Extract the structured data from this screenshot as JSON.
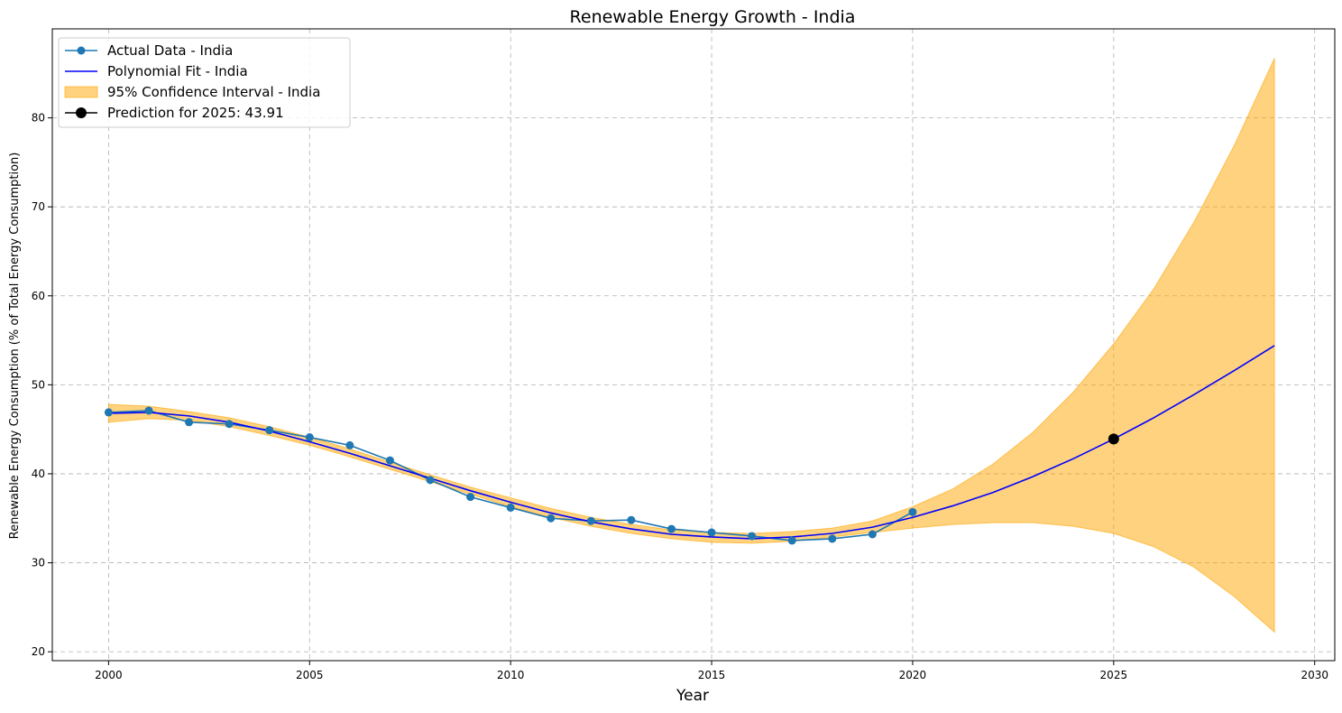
{
  "chart_data": {
    "type": "line",
    "title": "Renewable Energy Growth - India",
    "xlabel": "Year",
    "ylabel": "Renewable Energy Consumption (% of Total Energy Consumption)",
    "xlim": [
      1998.6,
      2030.5
    ],
    "ylim": [
      19,
      90
    ],
    "xticks": [
      2000,
      2005,
      2010,
      2015,
      2020,
      2025,
      2030
    ],
    "yticks": [
      20,
      30,
      40,
      50,
      60,
      70,
      80
    ],
    "grid": true,
    "legend_position": "upper left",
    "colors": {
      "actual": "#1f77b4",
      "fit": "#0000ff",
      "ci_fill": "#ffa500",
      "prediction": "#000000",
      "grid": "#b0b0b0"
    },
    "series": [
      {
        "name": "Actual Data - India",
        "kind": "line+marker",
        "x": [
          2000,
          2001,
          2002,
          2003,
          2004,
          2005,
          2006,
          2007,
          2008,
          2009,
          2010,
          2011,
          2012,
          2013,
          2014,
          2015,
          2016,
          2017,
          2018,
          2019,
          2020
        ],
        "y": [
          46.9,
          47.1,
          45.8,
          45.6,
          44.9,
          44.1,
          43.2,
          41.5,
          39.3,
          37.4,
          36.2,
          35.0,
          34.7,
          34.8,
          33.8,
          33.4,
          33.0,
          32.5,
          32.7,
          33.2,
          35.7
        ]
      },
      {
        "name": "Polynomial Fit - India",
        "kind": "line",
        "x": [
          2000,
          2001,
          2002,
          2003,
          2004,
          2005,
          2006,
          2007,
          2008,
          2009,
          2010,
          2011,
          2012,
          2013,
          2014,
          2015,
          2016,
          2017,
          2018,
          2019,
          2020,
          2021,
          2022,
          2023,
          2024,
          2025,
          2026,
          2027,
          2028,
          2029
        ],
        "y": [
          46.8,
          46.9,
          46.5,
          45.8,
          44.8,
          43.6,
          42.3,
          40.9,
          39.5,
          38.1,
          36.8,
          35.6,
          34.6,
          33.8,
          33.2,
          32.9,
          32.7,
          32.9,
          33.3,
          34.0,
          35.1,
          36.4,
          37.9,
          39.7,
          41.7,
          43.91,
          46.3,
          48.9,
          51.6,
          54.4
        ]
      },
      {
        "name": "95% Confidence Interval - India",
        "kind": "band",
        "x": [
          2000,
          2001,
          2002,
          2003,
          2004,
          2005,
          2006,
          2007,
          2008,
          2009,
          2010,
          2011,
          2012,
          2013,
          2014,
          2015,
          2016,
          2017,
          2018,
          2019,
          2020,
          2021,
          2022,
          2023,
          2024,
          2025,
          2026,
          2027,
          2028,
          2029
        ],
        "lower": [
          45.8,
          46.2,
          46.0,
          45.3,
          44.3,
          43.2,
          41.9,
          40.5,
          39.1,
          37.7,
          36.3,
          35.1,
          34.1,
          33.3,
          32.7,
          32.3,
          32.2,
          32.4,
          32.9,
          33.4,
          33.9,
          34.3,
          34.5,
          34.5,
          34.1,
          33.3,
          31.8,
          29.5,
          26.2,
          22.2
        ],
        "upper": [
          47.8,
          47.6,
          47.0,
          46.3,
          45.3,
          44.1,
          42.8,
          41.3,
          39.9,
          38.5,
          37.3,
          36.1,
          35.1,
          34.3,
          33.7,
          33.4,
          33.3,
          33.5,
          33.9,
          34.7,
          36.3,
          38.3,
          41.1,
          44.7,
          49.2,
          54.6,
          60.8,
          68.3,
          76.9,
          86.7
        ]
      },
      {
        "name": "Prediction for 2025: 43.91",
        "kind": "marker",
        "x": [
          2025
        ],
        "y": [
          43.91
        ]
      }
    ]
  }
}
